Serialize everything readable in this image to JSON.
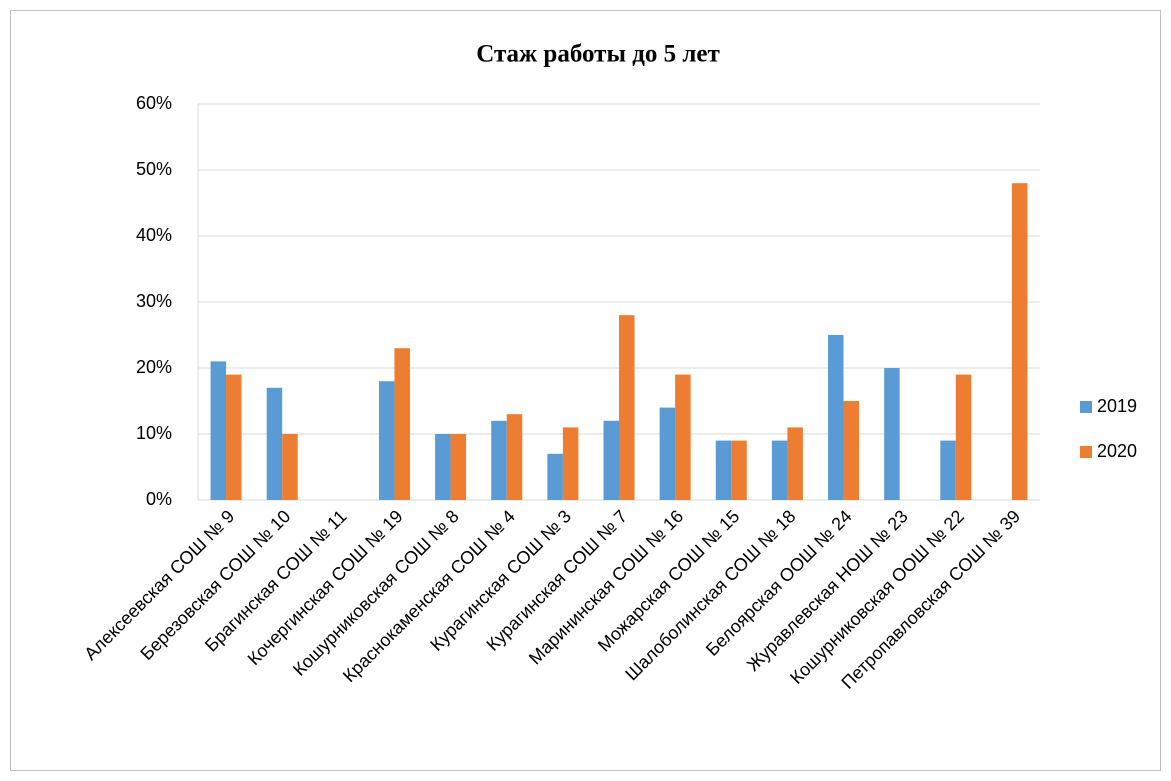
{
  "chart_data": {
    "type": "bar",
    "title": "Стаж работы до 5 лет",
    "categories": [
      "Алексеевская СОШ № 9",
      "Березовская СОШ № 10",
      "Брагинская СОШ № 11",
      "Кочергинская СОШ № 19",
      "Кошурниковская СОШ № 8",
      "Краснокаменская СОШ № 4",
      "Курагинская СОШ № 3",
      "Курагинская СОШ № 7",
      "Марининская СОШ № 16",
      "Можарская СОШ № 15",
      "Шалоболинская СОШ № 18",
      "Белоярская ООШ № 24",
      "Журавлевская НОШ № 23",
      "Кошурниковская ООШ № 22",
      "Петропавловская СОШ № 39"
    ],
    "series": [
      {
        "name": "2019",
        "color": "#5b9bd5",
        "values": [
          21,
          17,
          0,
          18,
          10,
          12,
          7,
          12,
          14,
          9,
          9,
          25,
          20,
          9,
          0
        ]
      },
      {
        "name": "2020",
        "color": "#ed7d31",
        "values": [
          19,
          10,
          0,
          23,
          10,
          13,
          11,
          28,
          19,
          9,
          11,
          15,
          0,
          19,
          48
        ]
      }
    ],
    "ylim": [
      0,
      60
    ],
    "yticks": [
      {
        "value": 0,
        "label": "0%"
      },
      {
        "value": 10,
        "label": "10%"
      },
      {
        "value": 20,
        "label": "20%"
      },
      {
        "value": 30,
        "label": "30%"
      },
      {
        "value": 40,
        "label": "40%"
      },
      {
        "value": 50,
        "label": "50%"
      },
      {
        "value": 60,
        "label": "60%"
      }
    ],
    "grid": true,
    "legend": "right"
  }
}
